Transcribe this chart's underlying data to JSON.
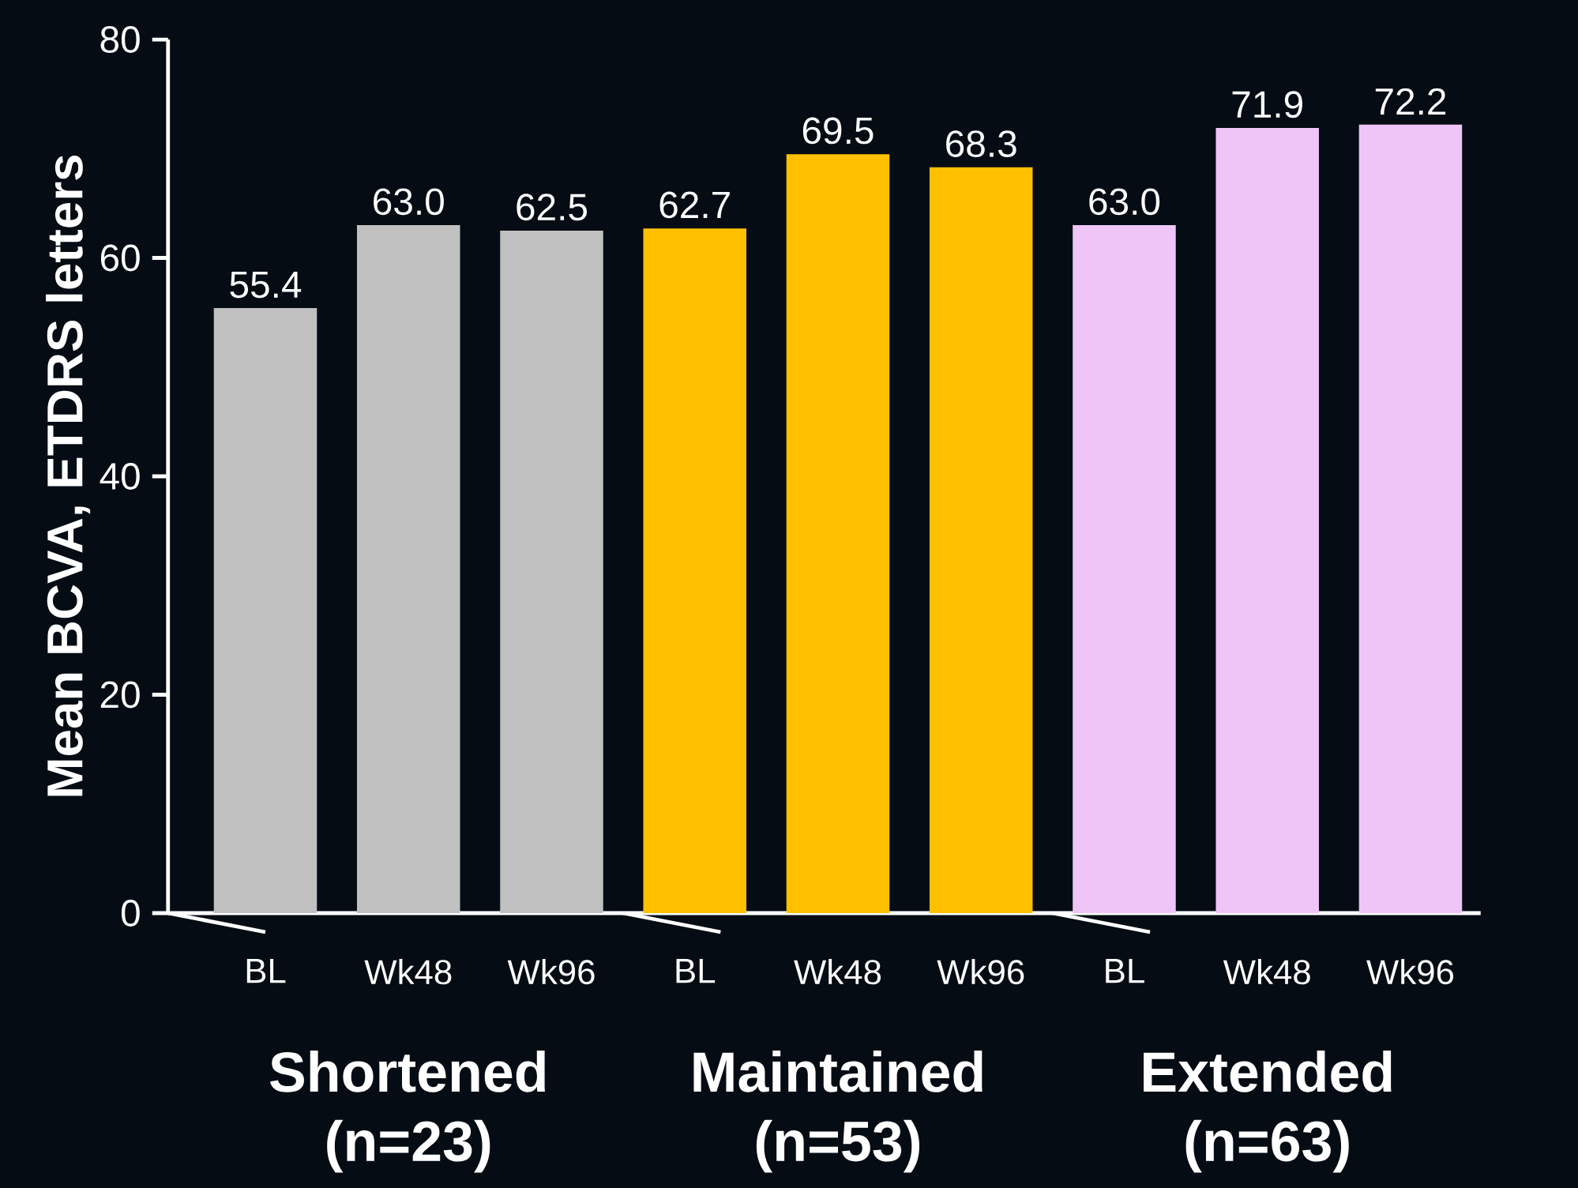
{
  "chart_data": {
    "type": "bar",
    "ylabel": "Mean BCVA, ETDRS letters",
    "categories": [
      "BL",
      "Wk48",
      "Wk96",
      "BL",
      "Wk48",
      "Wk96",
      "BL",
      "Wk48",
      "Wk96"
    ],
    "values": [
      55.4,
      63.0,
      62.5,
      62.7,
      69.5,
      68.3,
      63.0,
      71.9,
      72.2
    ],
    "value_labels": [
      "55.4",
      "63.0",
      "62.5",
      "62.7",
      "69.5",
      "68.3",
      "63.0",
      "71.9",
      "72.2"
    ],
    "colors": [
      "#c0c0c0",
      "#c0c0c0",
      "#c0c0c0",
      "#ffc000",
      "#ffc000",
      "#ffc000",
      "#efc5f8",
      "#efc5f8",
      "#efc5f8"
    ],
    "ylim": [
      0,
      80
    ],
    "yticks": [
      0,
      20,
      40,
      60,
      80
    ],
    "annotations": [
      "Shortened (n=23)",
      "Maintained (n=53)",
      "Extended (n=63)"
    ]
  }
}
